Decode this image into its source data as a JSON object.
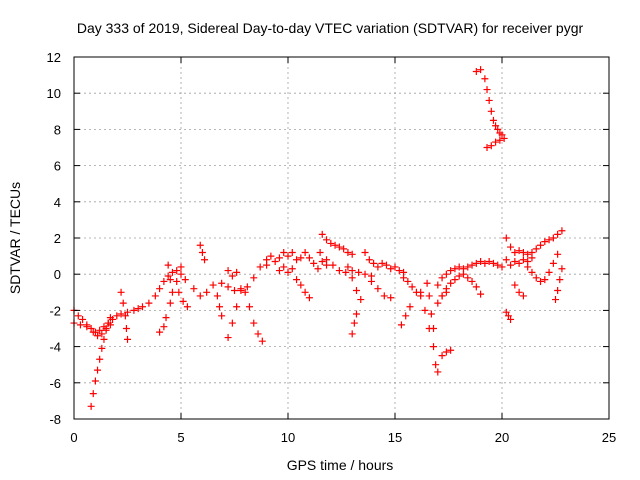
{
  "chart_data": {
    "type": "scatter",
    "title": "Day 333 of 2019, Sidereal Day-to-day VTEC variation (SDTVAR) for receiver pygr",
    "xlabel": "GPS time / hours",
    "ylabel": "SDTVAR / TECUs",
    "xlim": [
      0,
      25
    ],
    "ylim": [
      -8,
      12
    ],
    "xticks": [
      0,
      5,
      10,
      15,
      20,
      25
    ],
    "yticks": [
      -8,
      -6,
      -4,
      -2,
      0,
      2,
      4,
      6,
      8,
      10,
      12
    ],
    "grid": true,
    "marker": "+",
    "color": "#ff0000",
    "series": [
      {
        "name": "s1",
        "points": [
          [
            0.0,
            -2.0
          ],
          [
            0.2,
            -2.3
          ],
          [
            0.4,
            -2.5
          ],
          [
            0.6,
            -2.8
          ],
          [
            0.8,
            -3.0
          ],
          [
            1.0,
            -3.2
          ],
          [
            1.2,
            -3.1
          ],
          [
            1.4,
            -2.9
          ],
          [
            1.6,
            -2.7
          ],
          [
            1.8,
            -2.5
          ],
          [
            2.0,
            -2.3
          ],
          [
            2.2,
            -2.2
          ],
          [
            2.5,
            -2.1
          ],
          [
            2.8,
            -2.0
          ],
          [
            3.0,
            -1.9
          ],
          [
            3.2,
            -1.8
          ],
          [
            3.5,
            -1.6
          ],
          [
            3.8,
            -1.2
          ],
          [
            4.0,
            -0.8
          ],
          [
            4.2,
            -0.4
          ],
          [
            4.4,
            -0.1
          ],
          [
            4.6,
            0.1
          ],
          [
            4.8,
            0.2
          ],
          [
            5.0,
            0.0
          ],
          [
            5.2,
            -0.3
          ]
        ]
      },
      {
        "name": "s2",
        "points": [
          [
            0.0,
            -2.7
          ],
          [
            0.3,
            -2.8
          ],
          [
            0.6,
            -2.9
          ],
          [
            0.9,
            -3.2
          ],
          [
            1.1,
            -3.4
          ],
          [
            1.3,
            -3.3
          ],
          [
            1.5,
            -3.0
          ],
          [
            1.7,
            -2.8
          ]
        ]
      },
      {
        "name": "s3",
        "points": [
          [
            0.8,
            -7.3
          ],
          [
            0.9,
            -6.6
          ],
          [
            1.0,
            -5.9
          ],
          [
            1.1,
            -5.3
          ],
          [
            1.2,
            -4.7
          ],
          [
            1.3,
            -4.1
          ],
          [
            1.4,
            -3.6
          ],
          [
            1.5,
            -3.1
          ],
          [
            1.6,
            -2.7
          ],
          [
            1.7,
            -2.4
          ]
        ]
      },
      {
        "name": "s4",
        "points": [
          [
            2.2,
            -1.0
          ],
          [
            2.3,
            -1.6
          ],
          [
            2.4,
            -2.3
          ],
          [
            2.45,
            -3.0
          ],
          [
            2.5,
            -3.6
          ]
        ]
      },
      {
        "name": "s5",
        "points": [
          [
            4.4,
            0.5
          ],
          [
            4.5,
            -0.3
          ],
          [
            4.6,
            -1.0
          ],
          [
            4.5,
            -1.6
          ],
          [
            4.3,
            -2.4
          ],
          [
            4.2,
            -2.9
          ],
          [
            4.0,
            -3.2
          ]
        ]
      },
      {
        "name": "s6",
        "points": [
          [
            5.0,
            0.4
          ],
          [
            4.8,
            -0.4
          ],
          [
            4.9,
            -1.0
          ],
          [
            5.1,
            -1.5
          ],
          [
            5.3,
            -1.8
          ]
        ]
      },
      {
        "name": "s7",
        "points": [
          [
            5.6,
            -0.8
          ],
          [
            5.9,
            -1.2
          ],
          [
            6.2,
            -1.0
          ],
          [
            6.5,
            -0.6
          ],
          [
            6.9,
            -0.5
          ],
          [
            7.2,
            -0.7
          ],
          [
            7.5,
            -0.9
          ],
          [
            7.8,
            -0.9
          ],
          [
            8.1,
            -0.7
          ],
          [
            8.4,
            -0.2
          ],
          [
            8.7,
            0.4
          ],
          [
            9.0,
            0.8
          ]
        ]
      },
      {
        "name": "s8",
        "points": [
          [
            5.9,
            1.6
          ],
          [
            6.0,
            1.2
          ],
          [
            6.1,
            0.8
          ]
        ]
      },
      {
        "name": "s9",
        "points": [
          [
            6.7,
            -1.2
          ],
          [
            6.8,
            -1.8
          ],
          [
            6.9,
            -2.3
          ]
        ]
      },
      {
        "name": "s10",
        "points": [
          [
            7.8,
            -0.8
          ],
          [
            7.6,
            -1.8
          ],
          [
            7.4,
            -2.7
          ],
          [
            7.2,
            -3.5
          ]
        ]
      },
      {
        "name": "s11",
        "points": [
          [
            8.0,
            -1.0
          ],
          [
            8.2,
            -1.8
          ],
          [
            8.4,
            -2.7
          ],
          [
            8.6,
            -3.3
          ],
          [
            8.8,
            -3.7
          ]
        ]
      },
      {
        "name": "s12",
        "points": [
          [
            7.2,
            0.2
          ],
          [
            7.4,
            -0.1
          ],
          [
            7.6,
            0.1
          ]
        ]
      },
      {
        "name": "s13",
        "points": [
          [
            9.0,
            0.5
          ],
          [
            9.2,
            1.0
          ],
          [
            9.4,
            0.7
          ],
          [
            9.6,
            0.9
          ],
          [
            9.8,
            1.2
          ],
          [
            10.0,
            1.0
          ],
          [
            10.2,
            1.2
          ],
          [
            10.4,
            0.8
          ],
          [
            10.6,
            0.9
          ],
          [
            10.8,
            1.2
          ],
          [
            11.0,
            0.9
          ],
          [
            11.2,
            0.6
          ],
          [
            11.4,
            0.3
          ],
          [
            11.6,
            0.7
          ],
          [
            11.8,
            0.5
          ]
        ]
      },
      {
        "name": "s14",
        "points": [
          [
            9.6,
            0.2
          ],
          [
            9.8,
            0.4
          ],
          [
            10.0,
            0.1
          ],
          [
            10.2,
            0.3
          ],
          [
            10.4,
            -0.3
          ],
          [
            10.6,
            -0.6
          ],
          [
            10.8,
            -1.0
          ],
          [
            11.0,
            -1.3
          ]
        ]
      },
      {
        "name": "s15",
        "points": [
          [
            11.6,
            2.2
          ],
          [
            11.8,
            1.9
          ],
          [
            12.0,
            1.7
          ],
          [
            12.2,
            1.6
          ],
          [
            12.4,
            1.5
          ],
          [
            12.6,
            1.4
          ],
          [
            12.8,
            1.2
          ],
          [
            13.0,
            1.1
          ]
        ]
      },
      {
        "name": "s16",
        "points": [
          [
            11.5,
            1.2
          ],
          [
            11.8,
            0.8
          ],
          [
            12.1,
            0.5
          ],
          [
            12.4,
            0.2
          ],
          [
            12.7,
            0.1
          ],
          [
            13.0,
            0.2
          ],
          [
            13.3,
            0.1
          ],
          [
            13.6,
            0.0
          ],
          [
            13.9,
            -0.1
          ]
        ]
      },
      {
        "name": "s17",
        "points": [
          [
            12.8,
            0.4
          ],
          [
            13.0,
            -0.2
          ],
          [
            13.2,
            -0.9
          ],
          [
            13.4,
            -1.4
          ]
        ]
      },
      {
        "name": "s18",
        "points": [
          [
            13.2,
            -2.2
          ],
          [
            13.1,
            -2.7
          ],
          [
            13.0,
            -3.3
          ]
        ]
      },
      {
        "name": "s19",
        "points": [
          [
            13.6,
            1.2
          ],
          [
            13.8,
            0.8
          ],
          [
            14.0,
            0.6
          ],
          [
            14.2,
            0.4
          ],
          [
            14.4,
            0.6
          ],
          [
            14.6,
            0.5
          ],
          [
            14.8,
            0.3
          ],
          [
            15.0,
            0.4
          ],
          [
            15.2,
            0.2
          ],
          [
            15.4,
            0.1
          ]
        ]
      },
      {
        "name": "s20",
        "points": [
          [
            13.9,
            -0.4
          ],
          [
            14.2,
            -0.8
          ],
          [
            14.5,
            -1.2
          ],
          [
            14.8,
            -1.3
          ]
        ]
      },
      {
        "name": "s21",
        "points": [
          [
            15.4,
            -0.2
          ],
          [
            15.6,
            -0.4
          ],
          [
            15.8,
            -0.7
          ],
          [
            16.0,
            -1.0
          ],
          [
            16.2,
            -1.2
          ]
        ]
      },
      {
        "name": "s22",
        "points": [
          [
            15.7,
            -1.8
          ],
          [
            15.5,
            -2.3
          ],
          [
            15.3,
            -2.8
          ]
        ]
      },
      {
        "name": "s23",
        "points": [
          [
            16.2,
            -1.0
          ],
          [
            16.4,
            -2.0
          ],
          [
            16.6,
            -3.0
          ],
          [
            16.8,
            -4.0
          ],
          [
            16.9,
            -5.0
          ],
          [
            17.0,
            -5.4
          ]
        ]
      },
      {
        "name": "s24",
        "points": [
          [
            16.5,
            -0.5
          ],
          [
            16.6,
            -1.2
          ],
          [
            16.7,
            -2.2
          ],
          [
            16.8,
            -3.0
          ]
        ]
      },
      {
        "name": "s25",
        "points": [
          [
            17.2,
            -4.5
          ],
          [
            17.4,
            -4.3
          ],
          [
            17.6,
            -4.2
          ]
        ]
      },
      {
        "name": "s26",
        "points": [
          [
            17.0,
            -0.6
          ],
          [
            17.2,
            -0.2
          ],
          [
            17.4,
            0.0
          ],
          [
            17.6,
            0.2
          ],
          [
            17.8,
            0.3
          ],
          [
            18.0,
            0.4
          ],
          [
            18.2,
            0.3
          ],
          [
            18.4,
            0.4
          ],
          [
            18.6,
            0.5
          ],
          [
            18.8,
            0.6
          ],
          [
            19.0,
            0.7
          ],
          [
            19.2,
            0.6
          ],
          [
            19.4,
            0.7
          ],
          [
            19.6,
            0.6
          ],
          [
            19.8,
            0.5
          ],
          [
            20.0,
            0.4
          ]
        ]
      },
      {
        "name": "s27",
        "points": [
          [
            17.2,
            -1.2
          ],
          [
            17.4,
            -0.8
          ],
          [
            17.6,
            -0.5
          ],
          [
            17.8,
            -0.3
          ],
          [
            18.0,
            -0.1
          ],
          [
            18.2,
            0.0
          ],
          [
            18.4,
            -0.2
          ],
          [
            18.6,
            -0.4
          ],
          [
            18.8,
            -0.7
          ],
          [
            19.0,
            -1.1
          ]
        ]
      },
      {
        "name": "s28",
        "points": [
          [
            17.0,
            -1.6
          ],
          [
            17.2,
            -1.2
          ],
          [
            17.4,
            -1.0
          ]
        ]
      },
      {
        "name": "s29",
        "points": [
          [
            18.8,
            11.2
          ],
          [
            19.0,
            11.3
          ],
          [
            19.2,
            10.8
          ],
          [
            19.3,
            10.2
          ],
          [
            19.4,
            9.6
          ],
          [
            19.5,
            9.0
          ],
          [
            19.6,
            8.5
          ],
          [
            19.7,
            8.2
          ],
          [
            19.8,
            8.0
          ],
          [
            19.9,
            7.8
          ],
          [
            20.0,
            7.7
          ]
        ]
      },
      {
        "name": "s30",
        "points": [
          [
            19.3,
            7.0
          ],
          [
            19.5,
            7.1
          ],
          [
            19.7,
            7.3
          ],
          [
            19.9,
            7.4
          ],
          [
            20.1,
            7.5
          ]
        ]
      },
      {
        "name": "s31",
        "points": [
          [
            20.2,
            2.0
          ],
          [
            20.4,
            1.5
          ],
          [
            20.6,
            1.2
          ],
          [
            20.8,
            1.3
          ],
          [
            21.0,
            1.2
          ],
          [
            21.2,
            1.1
          ],
          [
            21.4,
            1.2
          ],
          [
            21.6,
            1.4
          ],
          [
            21.8,
            1.6
          ],
          [
            22.0,
            1.8
          ],
          [
            22.2,
            1.9
          ],
          [
            22.4,
            2.0
          ],
          [
            22.6,
            2.2
          ],
          [
            22.8,
            2.4
          ]
        ]
      },
      {
        "name": "s32",
        "points": [
          [
            20.2,
            0.8
          ],
          [
            20.4,
            0.5
          ],
          [
            20.6,
            0.7
          ],
          [
            20.8,
            0.6
          ],
          [
            21.0,
            0.8
          ],
          [
            21.2,
            0.7
          ],
          [
            21.4,
            0.9
          ]
        ]
      },
      {
        "name": "s33",
        "points": [
          [
            20.6,
            -0.6
          ],
          [
            20.8,
            -1.0
          ],
          [
            21.0,
            -1.2
          ]
        ]
      },
      {
        "name": "s34",
        "points": [
          [
            20.2,
            -2.1
          ],
          [
            20.3,
            -2.3
          ],
          [
            20.4,
            -2.5
          ]
        ]
      },
      {
        "name": "s35",
        "points": [
          [
            21.2,
            0.4
          ],
          [
            21.4,
            0.1
          ],
          [
            21.6,
            -0.2
          ],
          [
            21.8,
            -0.4
          ],
          [
            22.0,
            -0.3
          ],
          [
            22.2,
            0.1
          ],
          [
            22.4,
            0.6
          ],
          [
            22.6,
            1.1
          ]
        ]
      },
      {
        "name": "s36",
        "points": [
          [
            22.8,
            0.3
          ],
          [
            22.7,
            -0.3
          ],
          [
            22.6,
            -0.9
          ],
          [
            22.5,
            -1.4
          ]
        ]
      }
    ]
  }
}
